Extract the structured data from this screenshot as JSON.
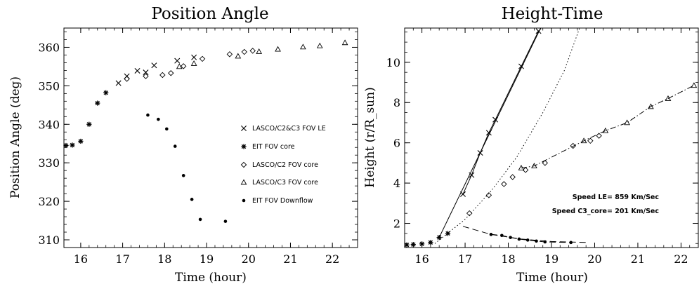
{
  "chart_data": [
    {
      "type": "scatter",
      "title": "Position Angle",
      "xlabel": "Time (hour)",
      "ylabel": "Position Angle (deg)",
      "xlim": [
        15.6,
        22.6
      ],
      "ylim": [
        308,
        365
      ],
      "xticks": [
        "16",
        "17",
        "18",
        "19",
        "20",
        "21",
        "22"
      ],
      "yticks": [
        "310",
        "320",
        "330",
        "340",
        "350",
        "360"
      ],
      "legend_position": "right",
      "series": [
        {
          "name": "LASCO/C2&C3 FOV LE",
          "marker": "x",
          "points": [
            [
              16.9,
              350.7
            ],
            [
              17.1,
              352.5
            ],
            [
              17.35,
              353.9
            ],
            [
              17.55,
              353.5
            ],
            [
              17.75,
              355.3
            ],
            [
              18.3,
              356.5
            ],
            [
              18.7,
              357.4
            ]
          ]
        },
        {
          "name": "EIT FOV core",
          "marker": "asterisk",
          "points": [
            [
              15.65,
              334.5
            ],
            [
              15.8,
              334.6
            ],
            [
              16.0,
              335.6
            ],
            [
              16.2,
              340.0
            ],
            [
              16.4,
              345.5
            ],
            [
              16.6,
              348.2
            ]
          ]
        },
        {
          "name": "LASCO/C2 FOV core",
          "marker": "diamond",
          "points": [
            [
              17.1,
              351.8
            ],
            [
              17.55,
              352.5
            ],
            [
              17.95,
              352.8
            ],
            [
              18.15,
              353.3
            ],
            [
              18.45,
              355.1
            ],
            [
              18.9,
              357.0
            ],
            [
              19.55,
              358.2
            ],
            [
              19.9,
              358.8
            ],
            [
              20.1,
              359.1
            ]
          ]
        },
        {
          "name": "LASCO/C3 FOV core",
          "marker": "triangle",
          "points": [
            [
              18.35,
              355.0
            ],
            [
              18.7,
              355.8
            ],
            [
              19.75,
              357.7
            ],
            [
              20.25,
              358.9
            ],
            [
              20.7,
              359.5
            ],
            [
              21.3,
              360.1
            ],
            [
              21.7,
              360.4
            ],
            [
              22.3,
              361.2
            ]
          ]
        },
        {
          "name": "EIT FOV Downflow",
          "marker": "dot",
          "points": [
            [
              17.6,
              342.4
            ],
            [
              17.85,
              341.3
            ],
            [
              18.05,
              338.8
            ],
            [
              18.25,
              334.3
            ],
            [
              18.45,
              326.7
            ],
            [
              18.65,
              320.5
            ],
            [
              18.85,
              315.3
            ],
            [
              19.45,
              314.8
            ]
          ]
        }
      ]
    },
    {
      "type": "line",
      "title": "Height-Time",
      "xlabel": "Time (hour)",
      "ylabel": "Height (r/R_sun)",
      "xlim": [
        15.6,
        22.4
      ],
      "ylim": [
        0.8,
        11.7
      ],
      "xticks": [
        "16",
        "17",
        "18",
        "19",
        "20",
        "21",
        "22"
      ],
      "yticks": [
        "2",
        "4",
        "6",
        "8",
        "10"
      ],
      "annotations": [
        "Speed LE= 859 Km/Sec",
        "Speed C3_core= 201 Km/Sec"
      ],
      "series": [
        {
          "marker": "x",
          "line": "solid",
          "points": [
            [
              16.95,
              3.45
            ],
            [
              17.15,
              4.4
            ],
            [
              17.35,
              5.5
            ],
            [
              17.55,
              6.5
            ],
            [
              17.7,
              7.15
            ],
            [
              18.3,
              9.8
            ],
            [
              18.7,
              11.55
            ]
          ]
        },
        {
          "marker": "asterisk",
          "points": [
            [
              15.65,
              0.93
            ],
            [
              15.8,
              0.95
            ],
            [
              16.0,
              0.98
            ],
            [
              16.2,
              1.05
            ],
            [
              16.4,
              1.3
            ],
            [
              16.6,
              1.5
            ]
          ]
        },
        {
          "marker": "diamond",
          "points": [
            [
              17.1,
              2.5
            ],
            [
              17.55,
              3.4
            ],
            [
              17.9,
              3.95
            ],
            [
              18.1,
              4.3
            ],
            [
              18.4,
              4.65
            ],
            [
              18.85,
              5.0
            ],
            [
              19.5,
              5.85
            ],
            [
              19.9,
              6.1
            ],
            [
              20.1,
              6.35
            ]
          ]
        },
        {
          "marker": "triangle",
          "line": "dash-dot",
          "points": [
            [
              18.3,
              4.75
            ],
            [
              18.6,
              4.85
            ],
            [
              19.75,
              6.1
            ],
            [
              20.25,
              6.6
            ],
            [
              20.75,
              7.0
            ],
            [
              21.3,
              7.8
            ],
            [
              21.7,
              8.2
            ],
            [
              22.3,
              8.85
            ]
          ]
        },
        {
          "marker": "dot",
          "line": "dashed",
          "points": [
            [
              17.6,
              1.45
            ],
            [
              17.85,
              1.4
            ],
            [
              18.05,
              1.3
            ],
            [
              18.25,
              1.22
            ],
            [
              18.45,
              1.17
            ],
            [
              18.65,
              1.12
            ],
            [
              18.85,
              1.08
            ],
            [
              19.45,
              1.05
            ]
          ]
        },
        {
          "line": "dotted",
          "points": [
            [
              16.3,
              1.0
            ],
            [
              17.0,
              2.2
            ],
            [
              17.6,
              3.6
            ],
            [
              18.2,
              5.3
            ],
            [
              18.8,
              7.5
            ],
            [
              19.3,
              9.6
            ],
            [
              19.65,
              11.7
            ]
          ]
        },
        {
          "line": "solid",
          "points": [
            [
              16.4,
              1.3
            ],
            [
              18.75,
              11.7
            ]
          ]
        },
        {
          "line": "dashed",
          "points": [
            [
              16.95,
              1.85
            ],
            [
              17.6,
              1.45
            ],
            [
              18.3,
              1.22
            ],
            [
              19.0,
              1.1
            ],
            [
              19.8,
              1.05
            ]
          ]
        }
      ]
    }
  ]
}
